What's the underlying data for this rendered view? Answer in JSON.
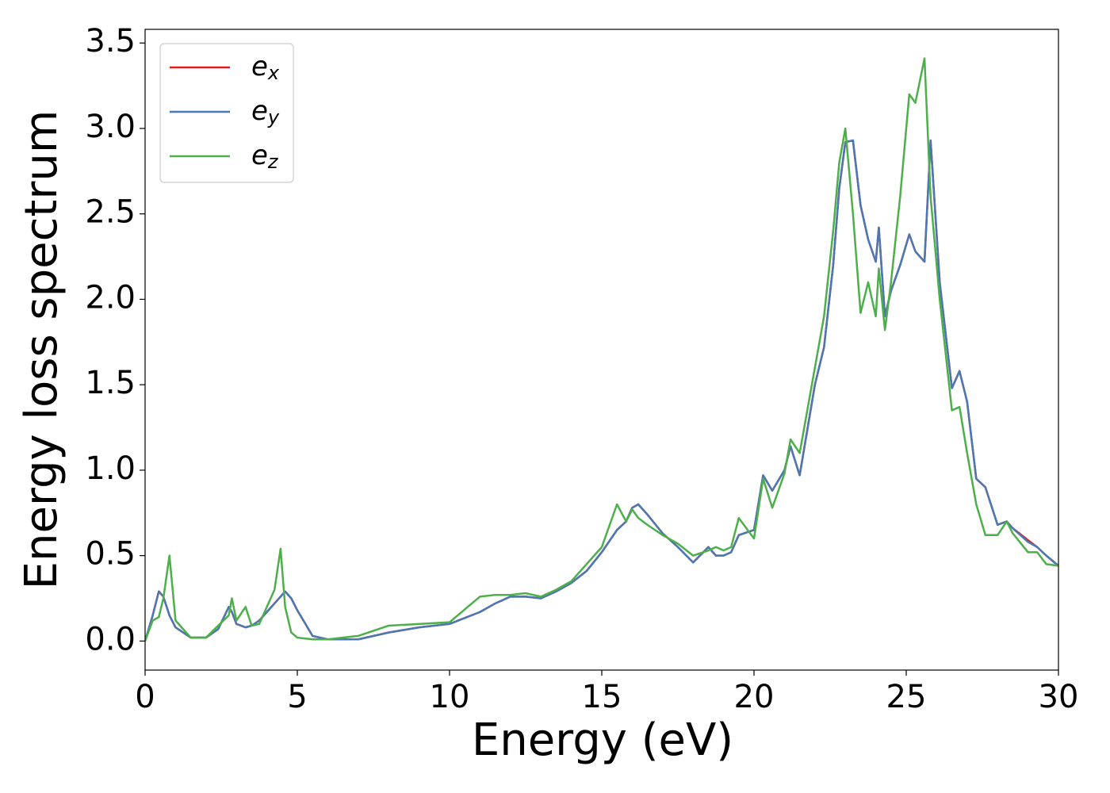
{
  "chart_data": {
    "type": "line",
    "xlabel": "Energy (eV)",
    "ylabel": "Energy loss spectrum",
    "x": [
      0,
      0.25,
      0.45,
      0.6,
      0.8,
      1.0,
      1.5,
      2.0,
      2.4,
      2.75,
      2.85,
      3.0,
      3.3,
      3.5,
      3.75,
      4.0,
      4.25,
      4.45,
      4.6,
      4.8,
      5.0,
      5.5,
      6,
      7,
      8,
      9,
      10,
      11,
      11.5,
      12,
      12.5,
      13,
      13.5,
      14,
      14.5,
      15,
      15.5,
      15.8,
      16,
      16.2,
      16.5,
      17,
      17.5,
      18,
      18.5,
      18.75,
      19,
      19.25,
      19.5,
      20,
      20.3,
      20.6,
      21,
      21.2,
      21.5,
      22,
      22.3,
      22.6,
      22.8,
      23.0,
      23.25,
      23.5,
      23.75,
      24.0,
      24.1,
      24.3,
      24.5,
      24.8,
      25.1,
      25.3,
      25.6,
      25.8,
      26.1,
      26.5,
      26.75,
      27,
      27.3,
      27.6,
      28,
      28.3,
      28.5,
      29,
      29.3,
      29.6,
      30
    ],
    "series": [
      {
        "name": "ex",
        "color": "#e41a1c",
        "values": [
          0,
          0.15,
          0.29,
          0.26,
          0.15,
          0.08,
          0.02,
          0.02,
          0.07,
          0.2,
          0.17,
          0.1,
          0.08,
          0.09,
          0.12,
          0.17,
          0.22,
          0.26,
          0.29,
          0.25,
          0.18,
          0.03,
          0.01,
          0.01,
          0.05,
          0.08,
          0.1,
          0.17,
          0.22,
          0.26,
          0.26,
          0.25,
          0.29,
          0.34,
          0.41,
          0.52,
          0.65,
          0.7,
          0.78,
          0.8,
          0.74,
          0.63,
          0.55,
          0.46,
          0.55,
          0.5,
          0.5,
          0.52,
          0.62,
          0.65,
          0.97,
          0.88,
          1.0,
          1.14,
          0.97,
          1.5,
          1.72,
          2.2,
          2.65,
          2.92,
          2.93,
          2.55,
          2.35,
          2.22,
          2.42,
          1.9,
          2.05,
          2.2,
          2.38,
          2.28,
          2.22,
          2.93,
          2.1,
          1.48,
          1.58,
          1.4,
          0.95,
          0.9,
          0.68,
          0.7,
          0.66,
          0.59,
          0.55,
          0.5,
          0.44
        ]
      },
      {
        "name": "ey",
        "color": "#4a78b4",
        "values": [
          0,
          0.15,
          0.29,
          0.26,
          0.15,
          0.08,
          0.02,
          0.02,
          0.07,
          0.2,
          0.17,
          0.1,
          0.08,
          0.09,
          0.12,
          0.17,
          0.22,
          0.26,
          0.29,
          0.25,
          0.18,
          0.03,
          0.01,
          0.01,
          0.05,
          0.08,
          0.1,
          0.17,
          0.22,
          0.26,
          0.26,
          0.25,
          0.29,
          0.34,
          0.41,
          0.52,
          0.65,
          0.7,
          0.78,
          0.8,
          0.74,
          0.63,
          0.55,
          0.46,
          0.55,
          0.5,
          0.5,
          0.52,
          0.62,
          0.65,
          0.97,
          0.88,
          1.0,
          1.14,
          0.97,
          1.5,
          1.72,
          2.2,
          2.65,
          2.92,
          2.93,
          2.55,
          2.35,
          2.22,
          2.42,
          1.9,
          2.05,
          2.2,
          2.38,
          2.28,
          2.22,
          2.93,
          2.1,
          1.48,
          1.58,
          1.4,
          0.95,
          0.9,
          0.68,
          0.7,
          0.66,
          0.58,
          0.55,
          0.5,
          0.44
        ]
      },
      {
        "name": "ez",
        "color": "#4daf4a",
        "values": [
          0,
          0.12,
          0.14,
          0.25,
          0.5,
          0.12,
          0.02,
          0.02,
          0.09,
          0.15,
          0.25,
          0.12,
          0.2,
          0.09,
          0.1,
          0.2,
          0.3,
          0.54,
          0.2,
          0.05,
          0.02,
          0.01,
          0.01,
          0.03,
          0.09,
          0.1,
          0.11,
          0.26,
          0.27,
          0.27,
          0.28,
          0.26,
          0.3,
          0.35,
          0.45,
          0.55,
          0.8,
          0.7,
          0.77,
          0.72,
          0.68,
          0.62,
          0.57,
          0.5,
          0.53,
          0.55,
          0.53,
          0.55,
          0.72,
          0.6,
          0.95,
          0.78,
          0.98,
          1.18,
          1.1,
          1.6,
          1.9,
          2.4,
          2.8,
          3.0,
          2.5,
          1.92,
          2.1,
          1.9,
          2.18,
          1.82,
          2.1,
          2.6,
          3.2,
          3.15,
          3.41,
          2.6,
          2.0,
          1.35,
          1.37,
          1.1,
          0.8,
          0.62,
          0.62,
          0.7,
          0.63,
          0.52,
          0.52,
          0.45,
          0.44
        ]
      }
    ],
    "xlim": [
      0,
      30
    ],
    "xticks": [
      0,
      5,
      10,
      15,
      20,
      25,
      30
    ],
    "ylim": [
      -0.17,
      3.58
    ],
    "yticks": [
      {
        "value": 0,
        "label": "0.0"
      },
      {
        "value": 0.5,
        "label": "0.5"
      },
      {
        "value": 1,
        "label": "1.0"
      },
      {
        "value": 1.5,
        "label": "1.5"
      },
      {
        "value": 2,
        "label": "2.0"
      },
      {
        "value": 2.5,
        "label": "2.5"
      },
      {
        "value": 3,
        "label": "3.0"
      },
      {
        "value": 3.5,
        "label": "3.5"
      }
    ],
    "legend": "upper left",
    "grid": false
  }
}
